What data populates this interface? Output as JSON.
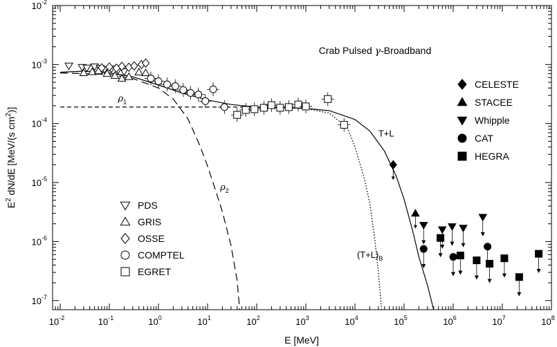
{
  "chart_data": {
    "type": "scatter",
    "title": "Crab Pulsed γ-Broadband",
    "title_parts": {
      "prefix": "Crab Pulsed ",
      "symbol": "γ",
      "suffix": "-Broadband"
    },
    "xlabel": "E [MeV]",
    "ylabel": "E² dN/dE [MeV/(s cm²)]",
    "ylabel_parts": {
      "a": "E",
      "a_sup": "2",
      "b": " dN/dE [MeV/(s cm",
      "b_sup": "2",
      "c": ")]"
    },
    "xscale": "log",
    "yscale": "log",
    "xlim": [
      0.007,
      100000000
    ],
    "ylim": [
      7e-08,
      0.01
    ],
    "x_ticks": [
      {
        "base": "10",
        "exp": "-2",
        "value": 0.01
      },
      {
        "base": "10",
        "exp": "-1",
        "value": 0.1
      },
      {
        "base": "10",
        "exp": "0",
        "value": 1
      },
      {
        "base": "10",
        "exp": "1",
        "value": 10
      },
      {
        "base": "10",
        "exp": "2",
        "value": 100
      },
      {
        "base": "10",
        "exp": "3",
        "value": 1000
      },
      {
        "base": "10",
        "exp": "4",
        "value": 10000
      },
      {
        "base": "10",
        "exp": "5",
        "value": 100000
      },
      {
        "base": "10",
        "exp": "6",
        "value": 1000000
      },
      {
        "base": "10",
        "exp": "7",
        "value": 10000000
      },
      {
        "base": "10",
        "exp": "8",
        "value": 100000000
      }
    ],
    "y_ticks": [
      {
        "base": "10",
        "exp": "-7",
        "value": 1e-07
      },
      {
        "base": "10",
        "exp": "-6",
        "value": 1e-06
      },
      {
        "base": "10",
        "exp": "-5",
        "value": 1e-05
      },
      {
        "base": "10",
        "exp": "-4",
        "value": 0.0001
      },
      {
        "base": "10",
        "exp": "-3",
        "value": 0.001
      },
      {
        "base": "10",
        "exp": "-2",
        "value": 0.01
      }
    ],
    "curves": [
      {
        "name": "T+L",
        "style": "solid",
        "points": [
          [
            0.01,
            0.00074
          ],
          [
            0.03,
            0.00077
          ],
          [
            0.1,
            0.00072
          ],
          [
            0.3,
            0.00062
          ],
          [
            1,
            0.00045
          ],
          [
            3,
            0.00033
          ],
          [
            10,
            0.00025
          ],
          [
            30,
            0.00021
          ],
          [
            100,
            0.00019
          ],
          [
            300,
            0.000186
          ],
          [
            1000,
            0.00018
          ],
          [
            3000,
            0.000165
          ],
          [
            10000,
            0.000117
          ],
          [
            20000,
            7.5e-05
          ],
          [
            40000,
            3.4e-05
          ],
          [
            70000,
            1.25e-05
          ],
          [
            100000,
            5.2e-06
          ],
          [
            150000,
            1.5e-06
          ],
          [
            200000,
            5.5e-07
          ],
          [
            300000,
            1.8e-07
          ],
          [
            400000,
            7e-08
          ]
        ]
      },
      {
        "name": "(T+L)B",
        "style": "dotted",
        "points": [
          [
            1000,
            0.00018
          ],
          [
            3000,
            0.00015
          ],
          [
            7000,
            8.5e-05
          ],
          [
            10000,
            4e-05
          ],
          [
            15000,
            1.3e-05
          ],
          [
            20000,
            4.5e-06
          ],
          [
            25000,
            1.2e-06
          ],
          [
            30000,
            3e-07
          ],
          [
            35000,
            7e-08
          ]
        ]
      },
      {
        "name": "ρ1",
        "style": "short-dash",
        "points": [
          [
            0.01,
            0.00019
          ],
          [
            0.1,
            0.00019
          ],
          [
            1,
            0.00019
          ],
          [
            10,
            0.00019
          ],
          [
            100,
            0.00019
          ],
          [
            1000,
            0.000188
          ]
        ]
      },
      {
        "name": "ρ2",
        "style": "long-dash",
        "points": [
          [
            0.01,
            0.00072
          ],
          [
            0.1,
            0.00068
          ],
          [
            0.3,
            0.00058
          ],
          [
            1,
            0.0004
          ],
          [
            2,
            0.00026
          ],
          [
            4,
            0.00012
          ],
          [
            7,
            4.2e-05
          ],
          [
            10,
            1.9e-05
          ],
          [
            15,
            6.8e-06
          ],
          [
            20,
            3.2e-06
          ],
          [
            30,
            8.5e-07
          ],
          [
            40,
            2.2e-07
          ],
          [
            45,
            7e-08
          ]
        ]
      }
    ],
    "curve_labels": [
      {
        "name": "T+L",
        "text": "T+L",
        "x": 30000,
        "y": 6e-05
      },
      {
        "name": "ρ1",
        "symbol": "ρ",
        "sub": "1",
        "x": 0.15,
        "y": 0.00024
      },
      {
        "name": "ρ2",
        "symbol": "ρ",
        "sub": "2",
        "x": 18,
        "y": 7.4e-06
      },
      {
        "name": "(T+L)B",
        "text": "(T+L)",
        "sub": "B",
        "x": 11000,
        "y": 5.3e-07
      }
    ],
    "series": [
      {
        "name": "PDS",
        "marker": "triangle-down-open",
        "points": [
          [
            0.015,
            0.00095
          ],
          [
            0.028,
            0.0009
          ],
          [
            0.035,
            0.00088
          ],
          [
            0.05,
            0.00092
          ],
          [
            0.065,
            0.00087
          ],
          [
            0.08,
            0.00083
          ],
          [
            0.11,
            0.00085
          ],
          [
            0.15,
            0.0008
          ],
          [
            0.2,
            0.00076
          ]
        ]
      },
      {
        "name": "GRIS",
        "marker": "triangle-up-open",
        "points": [
          [
            0.03,
            0.00072
          ],
          [
            0.045,
            0.00075
          ],
          [
            0.06,
            0.00078
          ],
          [
            0.09,
            0.0007
          ],
          [
            0.13,
            0.00065
          ],
          [
            0.18,
            0.00058
          ],
          [
            0.25,
            0.00062
          ],
          [
            0.4,
            0.00074
          ],
          [
            0.55,
            0.00072
          ]
        ]
      },
      {
        "name": "OSSE",
        "marker": "diamond-open",
        "points": [
          [
            0.07,
            0.00088
          ],
          [
            0.1,
            0.00091
          ],
          [
            0.14,
            0.00087
          ],
          [
            0.18,
            0.00093
          ],
          [
            0.25,
            0.0009
          ],
          [
            0.32,
            0.00095
          ],
          [
            0.45,
            0.001
          ],
          [
            0.55,
            0.00106
          ]
        ]
      },
      {
        "name": "COMPTEL",
        "marker": "circle-open",
        "points": [
          [
            0.7,
            0.00058
          ],
          [
            1,
            0.00052
          ],
          [
            1.5,
            0.00046
          ],
          [
            2.2,
            0.00043
          ],
          [
            3.2,
            0.00037
          ],
          [
            4.5,
            0.00033
          ],
          [
            6.5,
            0.00031
          ],
          [
            9,
            0.00024
          ],
          [
            13,
            0.00038
          ],
          [
            22,
            0.00019
          ]
        ]
      },
      {
        "name": "EGRET",
        "marker": "square-open",
        "points": [
          [
            40,
            0.00014
          ],
          [
            60,
            0.00017
          ],
          [
            90,
            0.000175
          ],
          [
            140,
            0.000185
          ],
          [
            200,
            0.000205
          ],
          [
            300,
            0.000185
          ],
          [
            450,
            0.00019
          ],
          [
            700,
            0.00021
          ],
          [
            1000,
            0.000195
          ],
          [
            2800,
            0.00026
          ],
          [
            6000,
            9.5e-05
          ]
        ]
      },
      {
        "name": "CELESTE",
        "marker": "diamond-filled",
        "points": [
          [
            60000,
            2e-05
          ]
        ]
      },
      {
        "name": "STACEE",
        "marker": "triangle-up-filled",
        "points": [
          [
            170000,
            3e-06
          ]
        ]
      },
      {
        "name": "Whipple",
        "marker": "triangle-down-filled",
        "points": [
          [
            250000,
            1.9e-06
          ],
          [
            600000,
            1.6e-06
          ],
          [
            950000,
            1.8e-06
          ],
          [
            1600000,
            1.7e-06
          ],
          [
            4000000,
            2.6e-06
          ]
        ]
      },
      {
        "name": "CAT",
        "marker": "circle-filled",
        "points": [
          [
            250000,
            7.5e-07
          ],
          [
            1000000,
            5.5e-07
          ],
          [
            5000000,
            8.2e-07
          ]
        ]
      },
      {
        "name": "HEGRA",
        "marker": "square-filled",
        "points": [
          [
            550000,
            1.15e-06
          ],
          [
            1400000,
            5.8e-07
          ],
          [
            3000000,
            4.8e-07
          ],
          [
            5500000,
            4.2e-07
          ],
          [
            11000000,
            5.2e-07
          ],
          [
            22000000,
            2.5e-07
          ],
          [
            55000000,
            6.2e-07
          ]
        ]
      }
    ],
    "legends": [
      {
        "position": "bottom-left",
        "entries": [
          {
            "label": "PDS",
            "marker": "triangle-down-open"
          },
          {
            "label": "GRIS",
            "marker": "triangle-up-open"
          },
          {
            "label": "OSSE",
            "marker": "diamond-open"
          },
          {
            "label": "COMPTEL",
            "marker": "circle-open"
          },
          {
            "label": "EGRET",
            "marker": "square-open"
          }
        ]
      },
      {
        "position": "top-right",
        "entries": [
          {
            "label": "CELESTE",
            "marker": "diamond-filled"
          },
          {
            "label": "STACEE",
            "marker": "triangle-up-filled"
          },
          {
            "label": "Whipple",
            "marker": "triangle-down-filled"
          },
          {
            "label": "CAT",
            "marker": "circle-filled"
          },
          {
            "label": "HEGRA",
            "marker": "square-filled"
          }
        ]
      }
    ],
    "colors": {
      "background": "#ffffff",
      "ink": "#000000"
    }
  }
}
